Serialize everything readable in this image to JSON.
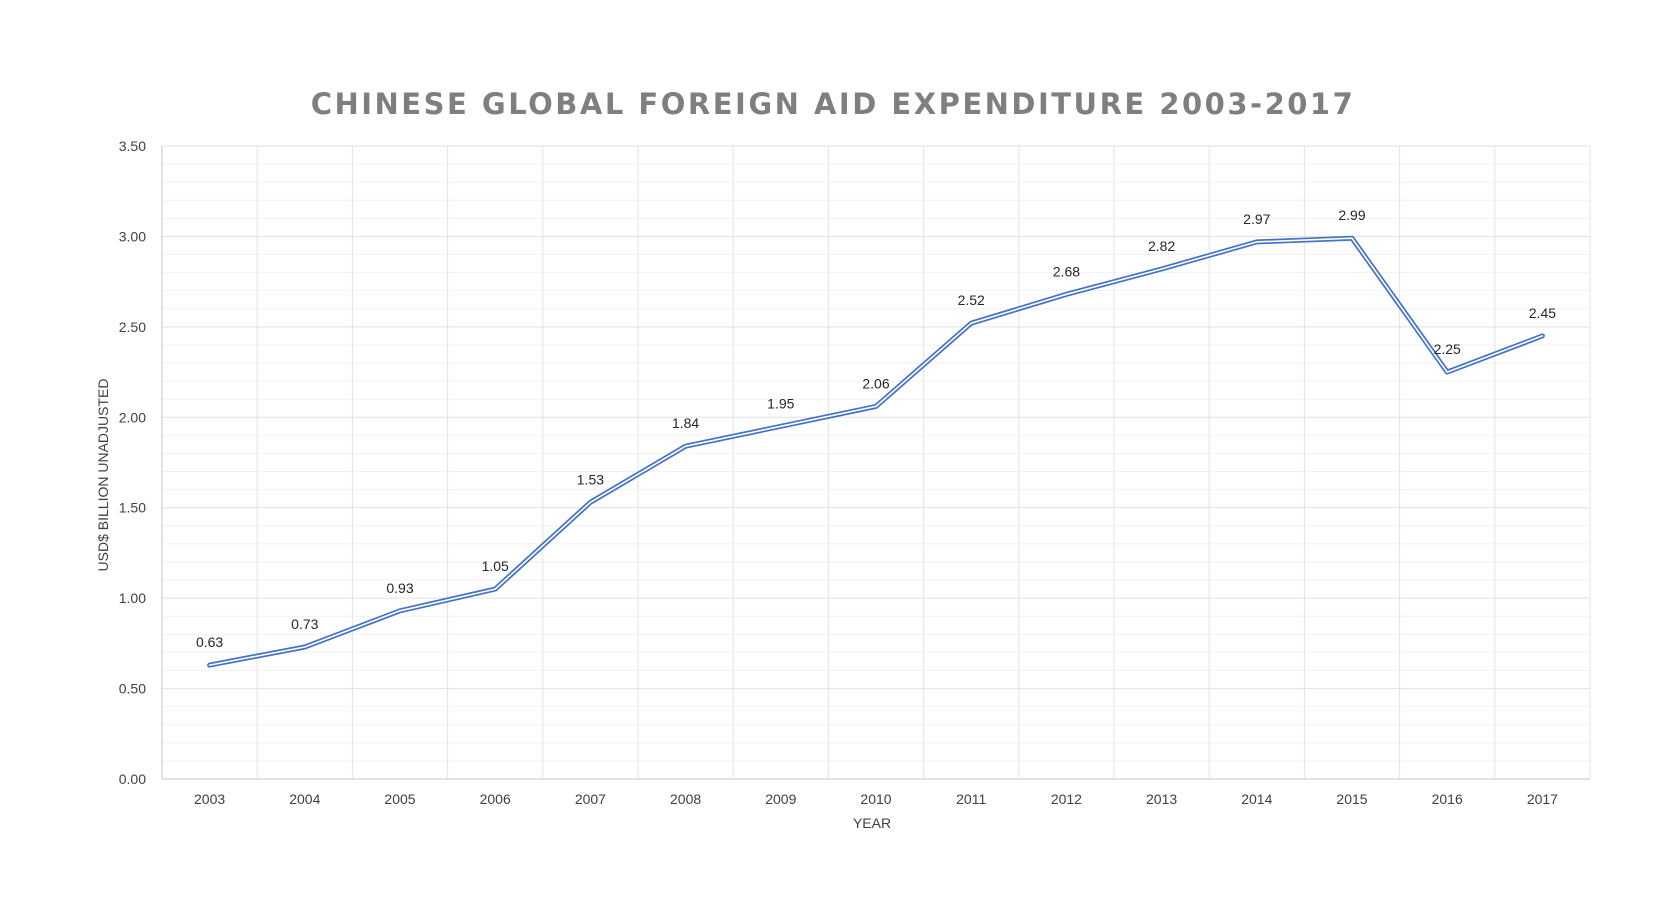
{
  "chart_data": {
    "type": "line",
    "title": "CHINESE GLOBAL FOREIGN AID EXPENDITURE 2003-2017",
    "xlabel": "YEAR",
    "ylabel": "USD$ BILLION UNADJUSTED",
    "categories": [
      "2003",
      "2004",
      "2005",
      "2006",
      "2007",
      "2008",
      "2009",
      "2010",
      "2011",
      "2012",
      "2013",
      "2014",
      "2015",
      "2016",
      "2017"
    ],
    "series": [
      {
        "values": [
          0.63,
          0.73,
          0.93,
          1.05,
          1.53,
          1.84,
          1.95,
          2.06,
          2.52,
          2.68,
          2.82,
          2.97,
          2.99,
          2.25,
          2.45
        ],
        "labels": [
          "0.63",
          "0.73",
          "0.93",
          "1.05",
          "1.53",
          "1.84",
          "1.95",
          "2.06",
          "2.52",
          "2.68",
          "2.82",
          "2.97",
          "2.99",
          "2.25",
          "2.45"
        ],
        "color": "#4472c4"
      }
    ],
    "ylim": [
      0,
      3.5
    ],
    "yticks": [
      "0.00",
      "0.50",
      "1.00",
      "1.50",
      "2.00",
      "2.50",
      "3.00",
      "3.50"
    ],
    "grid": true,
    "legend": "none"
  }
}
